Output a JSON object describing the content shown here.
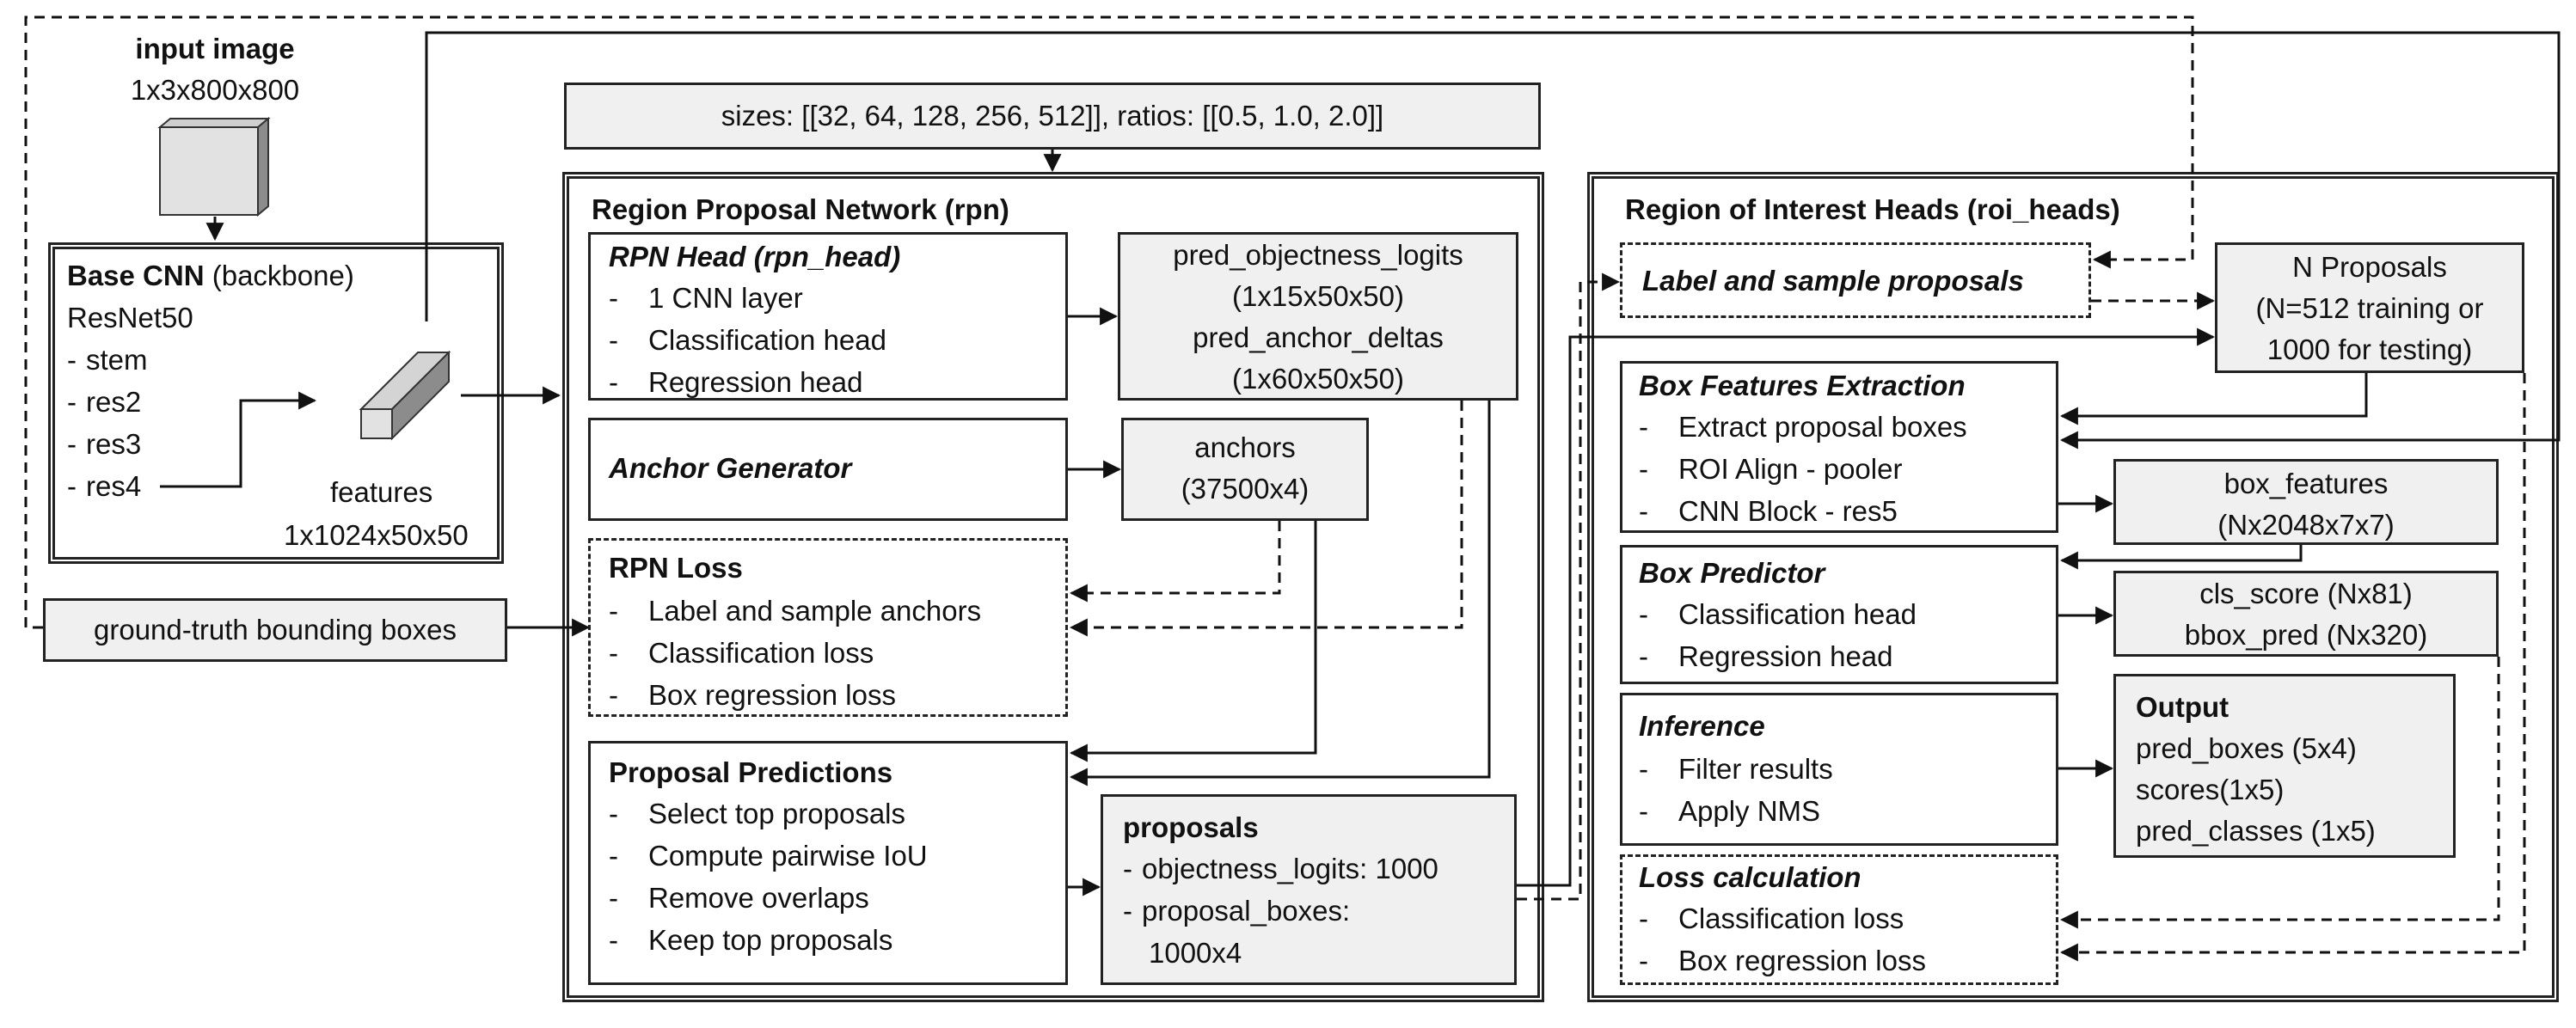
{
  "input_image": {
    "title": "input image",
    "size": "1x3x800x800"
  },
  "backbone": {
    "title": "Base CNN",
    "subtitle": "(backbone)",
    "model": "ResNet50",
    "items": [
      "stem",
      "res2",
      "res3",
      "res4"
    ],
    "features_label": "features",
    "features_size": "1x1024x50x50"
  },
  "ground_truth": "ground-truth bounding boxes",
  "anchor_params": "sizes: [[32, 64, 128, 256, 512]], ratios: [[0.5, 1.0, 2.0]]",
  "rpn": {
    "title": "Region Proposal Network (rpn)",
    "head": {
      "title": "RPN Head (rpn_head)",
      "items": [
        "1 CNN layer",
        "Classification head",
        "Regression head"
      ]
    },
    "head_outputs": [
      "pred_objectness_logits",
      "(1x15x50x50)",
      "pred_anchor_deltas",
      "(1x60x50x50)"
    ],
    "anchor_generator": "Anchor Generator",
    "anchors": [
      "anchors",
      "(37500x4)"
    ],
    "loss": {
      "title": "RPN Loss",
      "items": [
        "Label and sample anchors",
        "Classification loss",
        "Box regression loss"
      ]
    },
    "proposal_predictions": {
      "title": "Proposal Predictions",
      "items": [
        "Select top proposals",
        "Compute pairwise IoU",
        "Remove overlaps",
        "Keep top proposals"
      ]
    },
    "proposals": {
      "title": "proposals",
      "items": [
        "objectness_logits: 1000",
        "proposal_boxes:"
      ],
      "cont": "1000x4"
    }
  },
  "roi": {
    "title": "Region of Interest Heads (roi_heads)",
    "label_sample": "Label and sample proposals",
    "n_proposals": [
      "N Proposals",
      "(N=512 training or",
      "1000 for testing)"
    ],
    "box_features_extraction": {
      "title": "Box Features Extraction",
      "items": [
        "Extract proposal boxes",
        "ROI Align - pooler",
        "CNN Block - res5"
      ]
    },
    "box_features": [
      "box_features",
      "(Nx2048x7x7)"
    ],
    "box_predictor": {
      "title": "Box Predictor",
      "items": [
        "Classification head",
        "Regression head"
      ]
    },
    "predictor_outputs": [
      "cls_score (Nx81)",
      "bbox_pred (Nx320)"
    ],
    "inference": {
      "title": "Inference",
      "items": [
        "Filter results",
        "Apply NMS"
      ]
    },
    "output": {
      "title": "Output",
      "items": [
        "pred_boxes (5x4)",
        "scores(1x5)",
        "pred_classes (1x5)"
      ]
    },
    "loss_calc": {
      "title": "Loss calculation",
      "items": [
        "Classification loss",
        "Box regression loss"
      ]
    }
  }
}
